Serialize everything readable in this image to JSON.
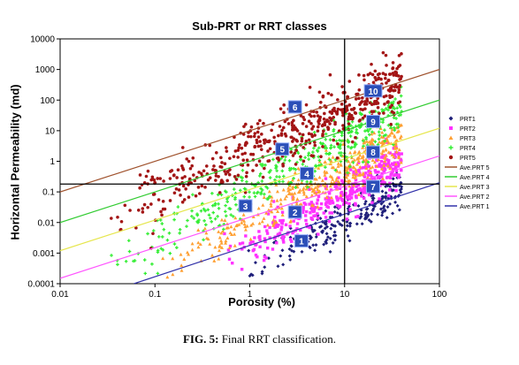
{
  "chart_data": {
    "type": "scatter",
    "title": "Sub-PRT or RRT classes",
    "xlabel": "Porosity (%)",
    "ylabel": "Horizontal Permeability (md)",
    "x_scale": "log",
    "y_scale": "log",
    "xlim": [
      0.01,
      100
    ],
    "ylim": [
      0.0001,
      10000
    ],
    "x_ticks": [
      "0.01",
      "0.1",
      "1",
      "10",
      "100"
    ],
    "y_ticks": [
      "0.0001",
      "0.001",
      "0.01",
      "0.1",
      "1",
      "10",
      "100",
      "1000",
      "10000"
    ],
    "legend_position": "right",
    "series": [
      {
        "name": "PRT1",
        "kind": "points",
        "color": "#1f1f7a",
        "marker": "diamond"
      },
      {
        "name": "PRT2",
        "kind": "points",
        "color": "#ff33ff",
        "marker": "square"
      },
      {
        "name": "PRT3",
        "kind": "points",
        "color": "#ffa033",
        "marker": "triangle"
      },
      {
        "name": "PRT4",
        "kind": "points",
        "color": "#33ee33",
        "marker": "cross"
      },
      {
        "name": "PRT5",
        "kind": "points",
        "color": "#a31515",
        "marker": "circle"
      },
      {
        "name": "Ave.PRT 5",
        "kind": "line",
        "color": "#a0522d",
        "x": [
          0.01,
          100
        ],
        "y": [
          0.1,
          1000
        ]
      },
      {
        "name": "Ave.PRT 4",
        "kind": "line",
        "color": "#33cc33",
        "x": [
          0.01,
          100
        ],
        "y": [
          0.01,
          100
        ]
      },
      {
        "name": "Ave.PRT 3",
        "kind": "line",
        "color": "#e6e64d",
        "x": [
          0.01,
          100
        ],
        "y": [
          0.0012,
          12
        ]
      },
      {
        "name": "Ave.PRT 2",
        "kind": "line",
        "color": "#ff55ff",
        "x": [
          0.01,
          100
        ],
        "y": [
          0.00015,
          1.5
        ]
      },
      {
        "name": "Ave.PRT 1",
        "kind": "line",
        "color": "#3333aa",
        "x": [
          0.06,
          100
        ],
        "y": [
          0.0001,
          0.2
        ]
      }
    ],
    "reference_lines": {
      "vertical_x": 10,
      "horizontal_y": 0.18
    },
    "class_labels": [
      {
        "label": "1",
        "x": 3.5,
        "y": 0.0025
      },
      {
        "label": "2",
        "x": 3.0,
        "y": 0.022
      },
      {
        "label": "3",
        "x": 0.9,
        "y": 0.035
      },
      {
        "label": "4",
        "x": 4.0,
        "y": 0.4
      },
      {
        "label": "5",
        "x": 2.2,
        "y": 2.5
      },
      {
        "label": "6",
        "x": 3.0,
        "y": 60
      },
      {
        "label": "7",
        "x": 20,
        "y": 0.15
      },
      {
        "label": "8",
        "x": 20,
        "y": 2.0
      },
      {
        "label": "9",
        "x": 20,
        "y": 20
      },
      {
        "label": "10",
        "x": 20,
        "y": 200
      }
    ],
    "scatter_clouds": [
      {
        "series": "PRT1",
        "n": 240,
        "xrange": [
          0.8,
          40
        ],
        "center_log10k": -2.2,
        "spread": 0.35,
        "slope": 1.8
      },
      {
        "series": "PRT2",
        "n": 380,
        "xrange": [
          0.5,
          40
        ],
        "center_log10k": -1.4,
        "spread": 0.35,
        "slope": 1.8
      },
      {
        "series": "PRT3",
        "n": 420,
        "xrange": [
          0.1,
          40
        ],
        "center_log10k": -0.6,
        "spread": 0.38,
        "slope": 1.7
      },
      {
        "series": "PRT4",
        "n": 400,
        "xrange": [
          0.03,
          40
        ],
        "center_log10k": 0.3,
        "spread": 0.4,
        "slope": 1.6
      },
      {
        "series": "PRT5",
        "n": 520,
        "xrange": [
          0.03,
          40
        ],
        "center_log10k": 1.4,
        "spread": 0.5,
        "slope": 1.4
      }
    ]
  },
  "caption": {
    "prefix": "FIG. 5:",
    "text": " Final RRT classification."
  }
}
